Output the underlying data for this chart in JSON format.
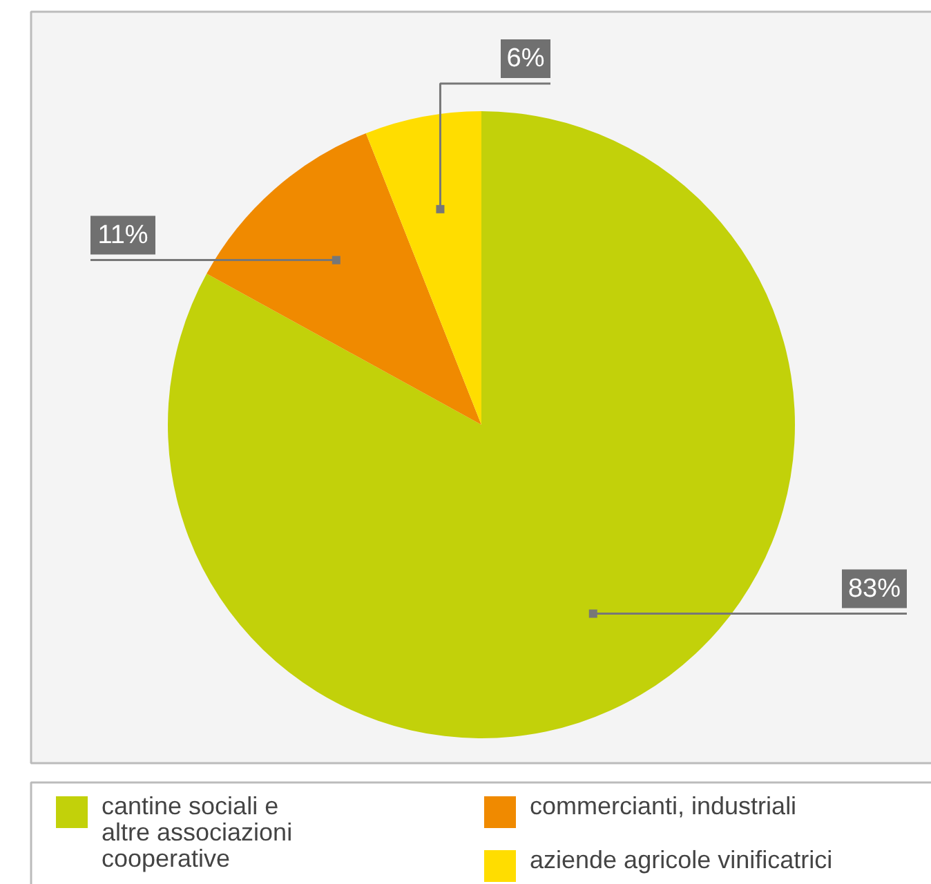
{
  "chart_data": {
    "type": "pie",
    "categories": [
      "cantine sociali e altre associazioni cooperative",
      "commercianti, industriali",
      "aziende agricole vinificatrici"
    ],
    "values": [
      83,
      11,
      6
    ],
    "colors": [
      "#c2d10a",
      "#f08a00",
      "#ffdd00"
    ],
    "value_labels": [
      "83%",
      "11%",
      "6%"
    ],
    "legend": "bottom"
  }
}
